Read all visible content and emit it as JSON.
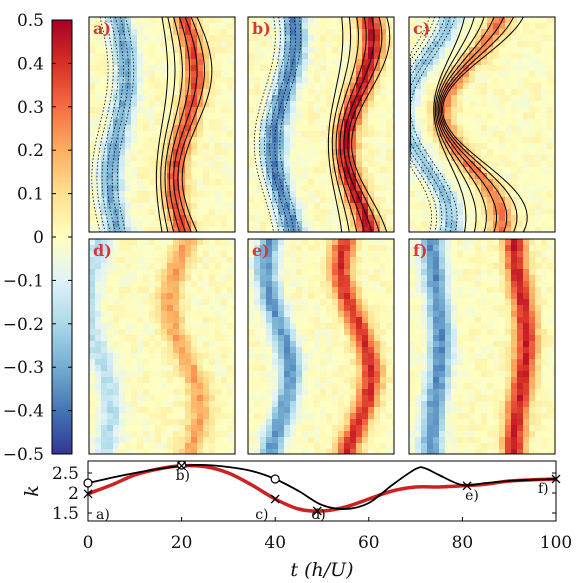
{
  "chart_data": [
    {
      "type": "heatmap",
      "colorbar": {
        "min": -0.5,
        "max": 0.5,
        "ticks": [
          "0.5",
          "0.4",
          "0.3",
          "0.2",
          "0.1",
          "0",
          "−0.1",
          "−0.2",
          "−0.3",
          "−0.4",
          "−0.5"
        ],
        "colormap": "red-yellow-blue (diverging)",
        "colors": [
          "#313695",
          "#4575b4",
          "#74add1",
          "#abd9e9",
          "#e0f3f8",
          "#ffffbf",
          "#fee090",
          "#fdae61",
          "#f46d43",
          "#d73027",
          "#a50026"
        ]
      },
      "panels": [
        {
          "label": "a)",
          "blue_x": 0.18,
          "red_x": 0.62,
          "amp": 0.07,
          "strength": 0.75,
          "contours": true
        },
        {
          "label": "b)",
          "blue_x": 0.22,
          "red_x": 0.72,
          "amp": 0.09,
          "strength": 0.95,
          "contours": true
        },
        {
          "label": "c)",
          "blue_x": 0.1,
          "red_x": 0.4,
          "amp": 0.2,
          "strength": 0.6,
          "contours": true
        },
        {
          "label": "d)",
          "blue_x": 0.05,
          "red_x": 0.62,
          "amp": 0.1,
          "strength": 0.45,
          "contours": false
        },
        {
          "label": "e)",
          "blue_x": 0.18,
          "red_x": 0.7,
          "amp": 0.1,
          "strength": 0.85,
          "contours": false
        },
        {
          "label": "f)",
          "blue_x": 0.16,
          "red_x": 0.72,
          "amp": 0.04,
          "strength": 0.9,
          "contours": false
        }
      ]
    },
    {
      "type": "line",
      "xlabel": "t  (h/U)",
      "ylabel": "k",
      "xlim": [
        0,
        100
      ],
      "ylim": [
        1.3,
        2.8
      ],
      "x_ticks": [
        0,
        20,
        40,
        60,
        80,
        100
      ],
      "y_ticks": [
        "2.5",
        "2",
        "1.5"
      ],
      "series": [
        {
          "color": "#000000",
          "x": [
            0,
            5,
            10,
            15,
            20,
            25,
            30,
            35,
            40,
            45,
            50,
            55,
            60,
            65,
            70,
            72,
            75,
            80,
            85,
            90,
            95,
            100
          ],
          "y": [
            2.25,
            2.38,
            2.5,
            2.6,
            2.68,
            2.7,
            2.65,
            2.55,
            2.35,
            2.05,
            1.7,
            1.6,
            1.75,
            2.2,
            2.6,
            2.62,
            2.45,
            2.2,
            2.25,
            2.3,
            2.33,
            2.35
          ]
        },
        {
          "color": "#cc2222",
          "x": [
            0,
            5,
            10,
            15,
            20,
            25,
            30,
            35,
            40,
            45,
            50,
            55,
            60,
            65,
            70,
            75,
            80,
            85,
            90,
            95,
            100
          ],
          "y": [
            1.98,
            2.2,
            2.45,
            2.6,
            2.68,
            2.66,
            2.5,
            2.2,
            1.85,
            1.6,
            1.55,
            1.65,
            1.85,
            2.05,
            2.15,
            2.15,
            2.18,
            2.22,
            2.3,
            2.33,
            2.35
          ]
        }
      ],
      "points": [
        {
          "x": 0,
          "label": "a)"
        },
        {
          "x": 20,
          "label": "b)"
        },
        {
          "x": 40,
          "label": "c)"
        },
        {
          "x": 49,
          "label": "d)"
        },
        {
          "x": 81,
          "label": "e)"
        },
        {
          "x": 100,
          "label": "f)"
        }
      ],
      "circle_markers": [
        {
          "x": 0,
          "y": 2.25
        },
        {
          "x": 20,
          "y": 2.7
        },
        {
          "x": 40,
          "y": 2.35
        }
      ],
      "cross_markers": [
        {
          "x": 0,
          "y": 1.98
        },
        {
          "x": 20,
          "y": 2.68
        },
        {
          "x": 40,
          "y": 1.85
        },
        {
          "x": 49,
          "y": 1.55
        },
        {
          "x": 81,
          "y": 2.18
        },
        {
          "x": 100,
          "y": 2.35
        }
      ]
    }
  ]
}
